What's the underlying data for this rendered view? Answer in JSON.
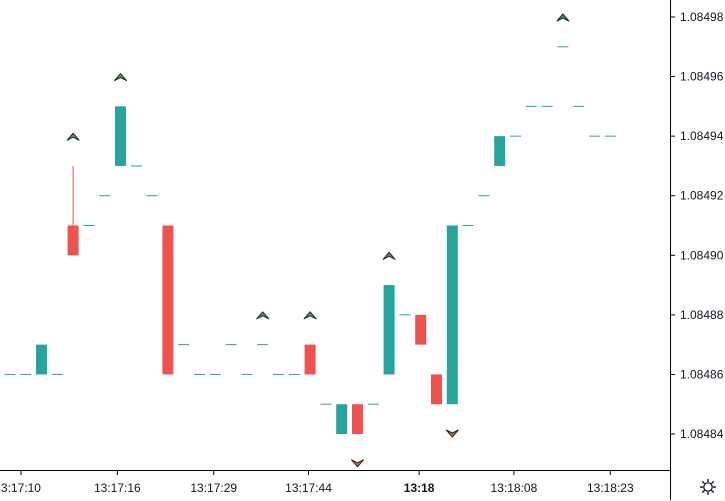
{
  "chart_data": {
    "type": "candlestick",
    "colors": {
      "up": "#26a69a",
      "down": "#ef5350",
      "marker_up_fill": "#5d9160",
      "marker_down_fill": "#ef5350",
      "marker_stroke": "#1f2a1f",
      "axis_line": "#000000",
      "tick_text": "#131722"
    },
    "ylim": [
      1.08482,
      1.08499
    ],
    "y_ticks": [
      "1.08484",
      "1.08486",
      "1.08488",
      "1.08490",
      "1.08492",
      "1.08494",
      "1.08496",
      "1.08498"
    ],
    "x_ticks": [
      {
        "label": "3:17:10",
        "bar": 0.7,
        "bold": false
      },
      {
        "label": "13:17:16",
        "bar": 6.8,
        "bold": false
      },
      {
        "label": "13:17:29",
        "bar": 12.9,
        "bold": false
      },
      {
        "label": "13:17:44",
        "bar": 18.9,
        "bold": false
      },
      {
        "label": "13:18",
        "bar": 25.9,
        "bold": true
      },
      {
        "label": "13:18:08",
        "bar": 31.9,
        "bold": false
      },
      {
        "label": "13:18:23",
        "bar": 38.0,
        "bold": false
      }
    ],
    "candles": [
      {
        "o": 1.08486,
        "h": 1.08486,
        "l": 1.08486,
        "c": 1.08486
      },
      {
        "o": 1.08486,
        "h": 1.08486,
        "l": 1.08486,
        "c": 1.08486
      },
      {
        "o": 1.08486,
        "h": 1.08487,
        "l": 1.08486,
        "c": 1.08487
      },
      {
        "o": 1.08486,
        "h": 1.08486,
        "l": 1.08486,
        "c": 1.08486
      },
      {
        "o": 1.08491,
        "h": 1.08493,
        "l": 1.0849,
        "c": 1.0849
      },
      {
        "o": 1.08491,
        "h": 1.08491,
        "l": 1.08491,
        "c": 1.08491
      },
      {
        "o": 1.08492,
        "h": 1.08492,
        "l": 1.08492,
        "c": 1.08492
      },
      {
        "o": 1.08493,
        "h": 1.08495,
        "l": 1.08493,
        "c": 1.08495
      },
      {
        "o": 1.08493,
        "h": 1.08493,
        "l": 1.08493,
        "c": 1.08493
      },
      {
        "o": 1.08492,
        "h": 1.08492,
        "l": 1.08492,
        "c": 1.08492
      },
      {
        "o": 1.08491,
        "h": 1.08491,
        "l": 1.08486,
        "c": 1.08486
      },
      {
        "o": 1.08487,
        "h": 1.08487,
        "l": 1.08487,
        "c": 1.08487
      },
      {
        "o": 1.08486,
        "h": 1.08486,
        "l": 1.08486,
        "c": 1.08486
      },
      {
        "o": 1.08486,
        "h": 1.08486,
        "l": 1.08486,
        "c": 1.08486
      },
      {
        "o": 1.08487,
        "h": 1.08487,
        "l": 1.08487,
        "c": 1.08487
      },
      {
        "o": 1.08486,
        "h": 1.08486,
        "l": 1.08486,
        "c": 1.08486
      },
      {
        "o": 1.08487,
        "h": 1.08487,
        "l": 1.08487,
        "c": 1.08487
      },
      {
        "o": 1.08486,
        "h": 1.08486,
        "l": 1.08486,
        "c": 1.08486
      },
      {
        "o": 1.08486,
        "h": 1.08486,
        "l": 1.08486,
        "c": 1.08486
      },
      {
        "o": 1.08487,
        "h": 1.08487,
        "l": 1.08486,
        "c": 1.08486
      },
      {
        "o": 1.08485,
        "h": 1.08485,
        "l": 1.08485,
        "c": 1.08485
      },
      {
        "o": 1.08484,
        "h": 1.08485,
        "l": 1.08484,
        "c": 1.08485
      },
      {
        "o": 1.08485,
        "h": 1.08485,
        "l": 1.08484,
        "c": 1.08484
      },
      {
        "o": 1.08485,
        "h": 1.08485,
        "l": 1.08485,
        "c": 1.08485
      },
      {
        "o": 1.08486,
        "h": 1.08489,
        "l": 1.08486,
        "c": 1.08489
      },
      {
        "o": 1.08488,
        "h": 1.08488,
        "l": 1.08488,
        "c": 1.08488
      },
      {
        "o": 1.08488,
        "h": 1.08488,
        "l": 1.08487,
        "c": 1.08487
      },
      {
        "o": 1.08486,
        "h": 1.08486,
        "l": 1.08485,
        "c": 1.08485
      },
      {
        "o": 1.08485,
        "h": 1.08491,
        "l": 1.08485,
        "c": 1.08491
      },
      {
        "o": 1.08491,
        "h": 1.08491,
        "l": 1.08491,
        "c": 1.08491
      },
      {
        "o": 1.08492,
        "h": 1.08492,
        "l": 1.08492,
        "c": 1.08492
      },
      {
        "o": 1.08493,
        "h": 1.08494,
        "l": 1.08493,
        "c": 1.08494
      },
      {
        "o": 1.08494,
        "h": 1.08494,
        "l": 1.08494,
        "c": 1.08494
      },
      {
        "o": 1.08495,
        "h": 1.08495,
        "l": 1.08495,
        "c": 1.08495
      },
      {
        "o": 1.08495,
        "h": 1.08495,
        "l": 1.08495,
        "c": 1.08495
      },
      {
        "o": 1.08497,
        "h": 1.08497,
        "l": 1.08497,
        "c": 1.08497
      },
      {
        "o": 1.08495,
        "h": 1.08495,
        "l": 1.08495,
        "c": 1.08495
      },
      {
        "o": 1.08494,
        "h": 1.08494,
        "l": 1.08494,
        "c": 1.08494
      },
      {
        "o": 1.08494,
        "h": 1.08494,
        "l": 1.08494,
        "c": 1.08494
      }
    ],
    "markers": [
      {
        "bar": 4,
        "dir": "up",
        "price": 1.08494
      },
      {
        "bar": 7,
        "dir": "up",
        "price": 1.08496
      },
      {
        "bar": 16,
        "dir": "up",
        "price": 1.08488
      },
      {
        "bar": 19,
        "dir": "up",
        "price": 1.08488
      },
      {
        "bar": 22,
        "dir": "down",
        "price": 1.08483
      },
      {
        "bar": 24,
        "dir": "up",
        "price": 1.0849
      },
      {
        "bar": 28,
        "dir": "down",
        "price": 1.08484
      },
      {
        "bar": 35,
        "dir": "up",
        "price": 1.08498
      }
    ]
  },
  "controls": {
    "settings_icon": "gear-icon"
  }
}
